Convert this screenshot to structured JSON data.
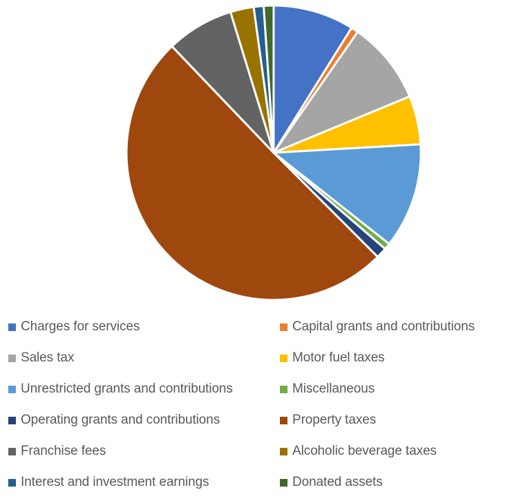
{
  "chart_data": {
    "type": "pie",
    "title": "",
    "legend_position": "bottom",
    "slices": [
      {
        "label": "Charges for services",
        "value": 9.0,
        "color": "#4472C4"
      },
      {
        "label": "Capital grants and contributions",
        "value": 0.8,
        "color": "#ED7D31"
      },
      {
        "label": "Sales tax",
        "value": 9.2,
        "color": "#A5A5A5"
      },
      {
        "label": "Motor fuel taxes",
        "value": 5.4,
        "color": "#FFC000"
      },
      {
        "label": "Unrestricted grants and contributions",
        "value": 11.7,
        "color": "#5B9BD5"
      },
      {
        "label": "Miscellaneous",
        "value": 0.7,
        "color": "#70AD47"
      },
      {
        "label": "Operating grants and contributions",
        "value": 1.2,
        "color": "#264478"
      },
      {
        "label": "Property taxes",
        "value": 51.0,
        "color": "#9E480E"
      },
      {
        "label": "Franchise fees",
        "value": 7.5,
        "color": "#636363"
      },
      {
        "label": "Alcoholic beverage taxes",
        "value": 2.6,
        "color": "#997300"
      },
      {
        "label": "Interest and investment earnings",
        "value": 1.1,
        "color": "#255E91"
      },
      {
        "label": "Donated assets",
        "value": 1.1,
        "color": "#43682B"
      }
    ]
  }
}
